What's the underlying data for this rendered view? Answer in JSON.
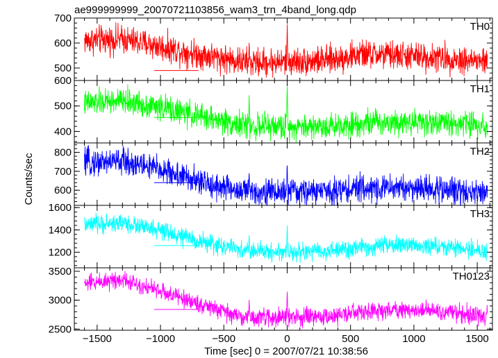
{
  "chart_data": {
    "type": "line",
    "title": "ae999999999_20070721103856_wam3_trn_4band_long.qdp",
    "xlabel": "Time [sec] 0 = 2007/07/21 10:38:56",
    "ylabel": "Counts/sec",
    "xlim": [
      -1680,
      1620
    ],
    "x_ticks": [
      -1500,
      -1000,
      -500,
      0,
      500,
      1000,
      1500
    ],
    "x_tick_labels": [
      "−1500",
      "−1000",
      "−500",
      "0",
      "500",
      "1000",
      "1500"
    ],
    "x_range": [
      -1600,
      1580
    ],
    "grid": false,
    "panels": [
      {
        "name": "TH0",
        "color": "#ff0000",
        "ylim": [
          450,
          700
        ],
        "y_ticks": [
          500,
          600,
          700
        ],
        "y_tick_labels": [
          "500",
          "600",
          "700"
        ],
        "trend_x": [
          -1600,
          -1300,
          -1000,
          -700,
          -400,
          -300,
          0,
          300,
          600,
          900,
          1200,
          1580
        ],
        "trend_y": [
          610,
          615,
          585,
          555,
          530,
          520,
          525,
          530,
          555,
          550,
          540,
          525
        ],
        "noise": 28,
        "spikes": [
          {
            "x": -300,
            "y": 600
          },
          {
            "x": 0,
            "y": 680
          }
        ],
        "flat": {
          "x": [
            -1050,
            -700
          ],
          "y": 490
        }
      },
      {
        "name": "TH1",
        "color": "#00ff00",
        "ylim": [
          355,
          600
        ],
        "y_ticks": [
          400,
          500,
          600
        ],
        "y_tick_labels": [
          "400",
          "500",
          "600"
        ],
        "trend_x": [
          -1600,
          -1300,
          -1000,
          -700,
          -400,
          -300,
          0,
          300,
          600,
          900,
          1200,
          1580
        ],
        "trend_y": [
          510,
          520,
          495,
          460,
          430,
          420,
          420,
          420,
          435,
          440,
          435,
          425
        ],
        "noise": 25,
        "spikes": [
          {
            "x": -300,
            "y": 555
          },
          {
            "x": 0,
            "y": 600
          }
        ],
        "flat": {
          "x": [
            -1050,
            -700
          ],
          "y": 455
        }
      },
      {
        "name": "TH2",
        "color": "#0000ff",
        "ylim": [
          520,
          850
        ],
        "y_ticks": [
          600,
          700,
          800
        ],
        "y_tick_labels": [
          "600",
          "700",
          "800"
        ],
        "trend_x": [
          -1600,
          -1300,
          -1000,
          -700,
          -400,
          -300,
          0,
          300,
          600,
          900,
          1200,
          1580
        ],
        "trend_y": [
          745,
          755,
          710,
          645,
          600,
          595,
          590,
          595,
          610,
          615,
          605,
          590
        ],
        "noise": 35,
        "spikes": [
          {
            "x": -300,
            "y": 690
          },
          {
            "x": 0,
            "y": 750
          }
        ],
        "flat": {
          "x": [
            -1050,
            -700
          ],
          "y": 640
        }
      },
      {
        "name": "TH3",
        "color": "#00ffff",
        "ylim": [
          1060,
          1620
        ],
        "y_ticks": [
          1200,
          1400,
          1600
        ],
        "y_tick_labels": [
          "1200",
          "1400",
          "1600"
        ],
        "trend_x": [
          -1600,
          -1300,
          -1000,
          -700,
          -400,
          -300,
          0,
          300,
          600,
          900,
          1200,
          1580
        ],
        "trend_y": [
          1440,
          1465,
          1390,
          1300,
          1225,
          1210,
          1200,
          1205,
          1240,
          1265,
          1250,
          1210
        ],
        "noise": 40,
        "spikes": [
          {
            "x": -300,
            "y": 1370
          },
          {
            "x": 0,
            "y": 1470
          }
        ],
        "flat": {
          "x": [
            -1050,
            -700
          ],
          "y": 1260
        }
      },
      {
        "name": "TH0123",
        "color": "#ff00ff",
        "ylim": [
          2480,
          3560
        ],
        "y_ticks": [
          2500,
          3000,
          3500
        ],
        "y_tick_labels": [
          "2500",
          "3000",
          "3500"
        ],
        "trend_x": [
          -1600,
          -1300,
          -1000,
          -700,
          -400,
          -300,
          0,
          300,
          600,
          900,
          1200,
          1580
        ],
        "trend_y": [
          3290,
          3370,
          3150,
          2940,
          2730,
          2700,
          2700,
          2710,
          2800,
          2840,
          2810,
          2720
        ],
        "noise": 75,
        "spikes": [
          {
            "x": -300,
            "y": 3020
          },
          {
            "x": 0,
            "y": 3250
          }
        ],
        "flat": {
          "x": [
            -1050,
            -700
          ],
          "y": 2840
        }
      }
    ]
  }
}
